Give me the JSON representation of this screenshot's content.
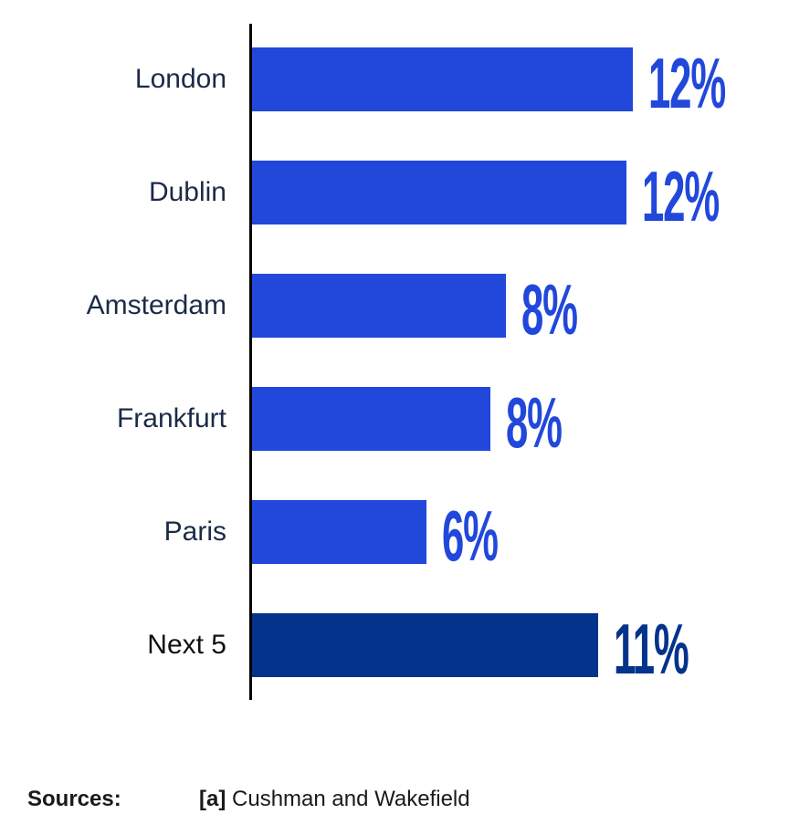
{
  "chart_data": {
    "type": "bar",
    "orientation": "horizontal",
    "title": "",
    "xlabel": "",
    "ylabel": "",
    "categories": [
      "London",
      "Dublin",
      "Amsterdam",
      "Frankfurt",
      "Paris",
      "Next 5"
    ],
    "values": [
      12.0,
      11.8,
      8.0,
      7.5,
      5.5,
      10.9
    ],
    "value_labels": [
      "12%",
      "12%",
      "8%",
      "8%",
      "6%",
      "11%"
    ],
    "axis_max": 12,
    "highlight_index": 5,
    "grid": false,
    "legend": false,
    "bar_color": "#2148DB",
    "highlight_bar_color": "#04338C",
    "value_label_color": "#2148DB",
    "highlight_value_label_color": "#04338C",
    "category_label_color": "#1B2B47",
    "axis_line_color": "#000000"
  },
  "footer": {
    "sources_label": "Sources:",
    "source_ref": "[a]",
    "source_text": "Cushman and Wakefield"
  }
}
